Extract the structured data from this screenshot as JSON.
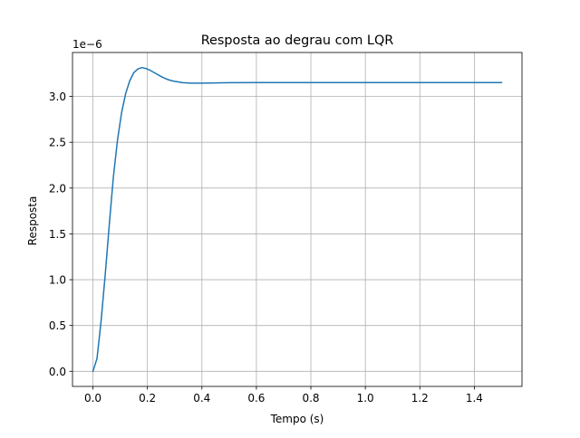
{
  "chart_data": {
    "type": "line",
    "title": "Resposta ao degrau com LQR",
    "xlabel": "Tempo (s)",
    "ylabel": "Resposta",
    "y_offset_label": "1e−6",
    "y_scale_factor": 1e-06,
    "xlim": [
      -0.075,
      1.575
    ],
    "ylim": [
      -0.165,
      3.48
    ],
    "xticks": [
      0.0,
      0.2,
      0.4,
      0.6,
      0.8,
      1.0,
      1.2,
      1.4
    ],
    "xtick_labels": [
      "0.0",
      "0.2",
      "0.4",
      "0.6",
      "0.8",
      "1.0",
      "1.2",
      "1.4"
    ],
    "yticks": [
      0.0,
      0.5,
      1.0,
      1.5,
      2.0,
      2.5,
      3.0
    ],
    "ytick_labels": [
      "0.0",
      "0.5",
      "1.0",
      "1.5",
      "2.0",
      "2.5",
      "3.0"
    ],
    "grid": true,
    "series": [
      {
        "color": "#1f77b4",
        "x": [
          0.0,
          0.015,
          0.03,
          0.045,
          0.06,
          0.075,
          0.09,
          0.105,
          0.12,
          0.135,
          0.15,
          0.165,
          0.18,
          0.195,
          0.21,
          0.225,
          0.24,
          0.255,
          0.27,
          0.285,
          0.3,
          0.33,
          0.36,
          0.4,
          0.45,
          0.5,
          0.6,
          0.7,
          0.8,
          0.9,
          1.0,
          1.1,
          1.2,
          1.3,
          1.4,
          1.5
        ],
        "y": [
          0.0,
          0.14,
          0.55,
          1.05,
          1.6,
          2.12,
          2.52,
          2.82,
          3.03,
          3.17,
          3.26,
          3.3,
          3.315,
          3.305,
          3.285,
          3.26,
          3.235,
          3.21,
          3.19,
          3.175,
          3.165,
          3.15,
          3.145,
          3.145,
          3.148,
          3.15,
          3.152,
          3.152,
          3.152,
          3.151,
          3.152,
          3.152,
          3.151,
          3.152,
          3.152,
          3.152
        ]
      }
    ]
  }
}
